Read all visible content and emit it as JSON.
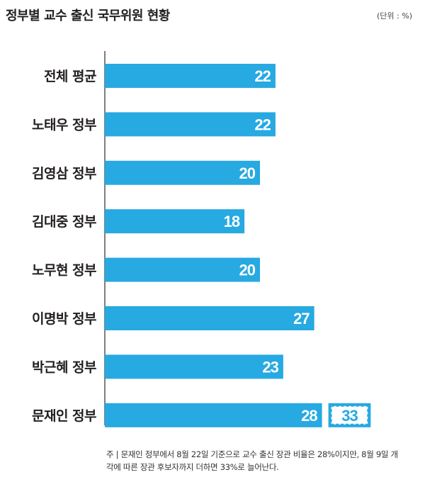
{
  "title": "정부별 교수 출신 국무위원 현황",
  "unit": "(단위 : %)",
  "chart_data": {
    "type": "bar",
    "orientation": "horizontal",
    "categories": [
      "전체 평균",
      "노태우 정부",
      "김영삼 정부",
      "김대중 정부",
      "노무현 정부",
      "이명박 정부",
      "박근혜 정부",
      "문재인 정부"
    ],
    "values": [
      22,
      22,
      20,
      18,
      20,
      27,
      23,
      28
    ],
    "extra": {
      "category": "문재인 정부",
      "value": 33,
      "style": "dashed-outline"
    },
    "xlim": [
      0,
      33
    ],
    "bar_color": "#27a9e1",
    "label_color": "#ffffff",
    "grid": false
  },
  "note": "주 | 문재인 정부에서 8월 22일 기준으로 교수 출신 장관 비율은 28%이지만, 8월 9일 개각에 따른 장관 후보자까지 더하면 33%로 늘어난다."
}
